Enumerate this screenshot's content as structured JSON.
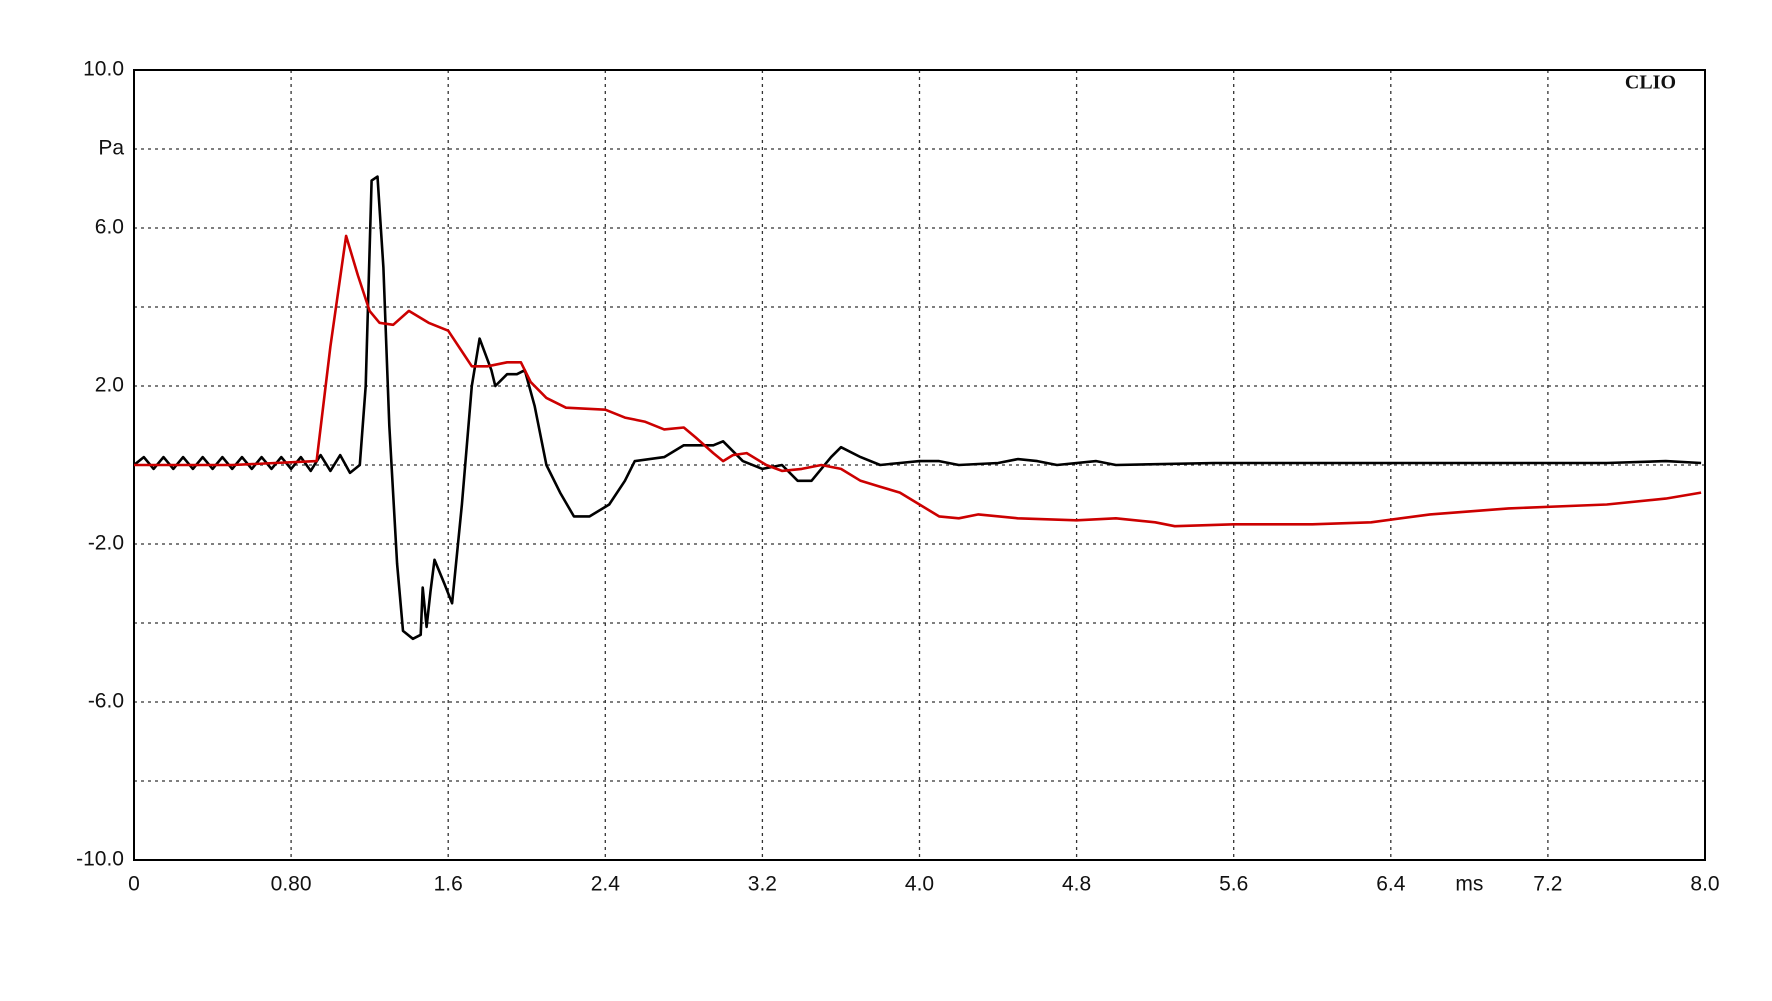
{
  "chart_data": {
    "type": "line",
    "annotation": "CLIO",
    "ylabel": "Pa",
    "xlabel": "ms",
    "xlim": [
      0,
      8
    ],
    "ylim": [
      -10,
      10
    ],
    "xticks": [
      0,
      {
        "value": 0.8,
        "label": "0.80"
      },
      1.6,
      2.4,
      3.2,
      {
        "value": 4,
        "label": "4.0"
      },
      4.8,
      5.6,
      6.4,
      7.2,
      {
        "value": 8,
        "label": "8.0"
      }
    ],
    "yticks": [
      {
        "value": -10,
        "label": "-10.0"
      },
      {
        "value": -8,
        "label": null
      },
      {
        "value": -6,
        "label": "-6.0"
      },
      {
        "value": -4,
        "label": null
      },
      {
        "value": -2,
        "label": "-2.0"
      },
      {
        "value": 0,
        "label": null
      },
      {
        "value": 2,
        "label": "2.0"
      },
      {
        "value": 4,
        "label": null
      },
      {
        "value": 6,
        "label": "6.0"
      },
      {
        "value": 8,
        "label": null
      },
      {
        "value": 10,
        "label": "10.0"
      }
    ],
    "grid": true,
    "series": [
      {
        "color": "#000000",
        "x": [
          0,
          0.05,
          0.1,
          0.15,
          0.2,
          0.25,
          0.3,
          0.35,
          0.4,
          0.45,
          0.5,
          0.55,
          0.6,
          0.65,
          0.7,
          0.75,
          0.8,
          0.85,
          0.9,
          0.95,
          1.0,
          1.05,
          1.1,
          1.15,
          1.18,
          1.21,
          1.24,
          1.27,
          1.3,
          1.34,
          1.37,
          1.42,
          1.46,
          1.47,
          1.49,
          1.51,
          1.53,
          1.58,
          1.62,
          1.67,
          1.72,
          1.76,
          1.82,
          1.84,
          1.9,
          1.95,
          1.99,
          2.04,
          2.1,
          2.17,
          2.24,
          2.32,
          2.42,
          2.5,
          2.55,
          2.7,
          2.8,
          2.95,
          3.0,
          3.1,
          3.2,
          3.3,
          3.38,
          3.45,
          3.55,
          3.6,
          3.7,
          3.8,
          3.9,
          4.0,
          4.1,
          4.2,
          4.4,
          4.5,
          4.6,
          4.7,
          4.9,
          5.0,
          5.5,
          6.0,
          7.0,
          7.5,
          7.8,
          7.98
        ],
        "values": [
          0,
          0.2,
          -0.1,
          0.2,
          -0.1,
          0.2,
          -0.1,
          0.2,
          -0.1,
          0.2,
          -0.1,
          0.2,
          -0.1,
          0.2,
          -0.1,
          0.2,
          -0.1,
          0.2,
          -0.15,
          0.25,
          -0.15,
          0.25,
          -0.2,
          0,
          2,
          7.2,
          7.3,
          5,
          1,
          -2.5,
          -4.2,
          -4.4,
          -4.3,
          -3.1,
          -4.1,
          -3.2,
          -2.4,
          -3.0,
          -3.5,
          -1,
          2.0,
          3.2,
          2.4,
          2.0,
          2.3,
          2.3,
          2.4,
          1.5,
          0,
          -0.7,
          -1.3,
          -1.3,
          -1.0,
          -0.4,
          0.1,
          0.2,
          0.5,
          0.5,
          0.6,
          0.1,
          -0.1,
          0,
          -0.4,
          -0.4,
          0.2,
          0.45,
          0.2,
          0,
          0.05,
          0.1,
          0.1,
          0,
          0.05,
          0.15,
          0.1,
          0,
          0.1,
          0,
          0.05,
          0.05,
          0.05,
          0.05,
          0.1,
          0.05
        ]
      },
      {
        "color": "#cc0000",
        "x": [
          0,
          0.5,
          0.93,
          1.0,
          1.08,
          1.14,
          1.2,
          1.25,
          1.32,
          1.4,
          1.5,
          1.6,
          1.68,
          1.72,
          1.8,
          1.9,
          1.97,
          2.02,
          2.1,
          2.2,
          2.4,
          2.5,
          2.6,
          2.7,
          2.8,
          2.86,
          2.95,
          3.0,
          3.05,
          3.12,
          3.22,
          3.3,
          3.4,
          3.5,
          3.6,
          3.7,
          3.8,
          3.9,
          4.0,
          4.1,
          4.2,
          4.3,
          4.5,
          4.8,
          5.0,
          5.2,
          5.3,
          5.6,
          6.0,
          6.3,
          6.6,
          7.0,
          7.5,
          7.8,
          7.98
        ],
        "values": [
          0,
          0,
          0.1,
          3.0,
          5.8,
          4.8,
          3.9,
          3.6,
          3.55,
          3.9,
          3.6,
          3.4,
          2.8,
          2.5,
          2.5,
          2.6,
          2.6,
          2.1,
          1.7,
          1.45,
          1.4,
          1.2,
          1.1,
          0.9,
          0.95,
          0.7,
          0.3,
          0.1,
          0.25,
          0.3,
          0,
          -0.15,
          -0.1,
          0,
          -0.1,
          -0.4,
          -0.55,
          -0.7,
          -1.0,
          -1.3,
          -1.35,
          -1.25,
          -1.35,
          -1.4,
          -1.35,
          -1.45,
          -1.55,
          -1.5,
          -1.5,
          -1.45,
          -1.25,
          -1.1,
          -1.0,
          -0.85,
          -0.7
        ]
      }
    ]
  }
}
